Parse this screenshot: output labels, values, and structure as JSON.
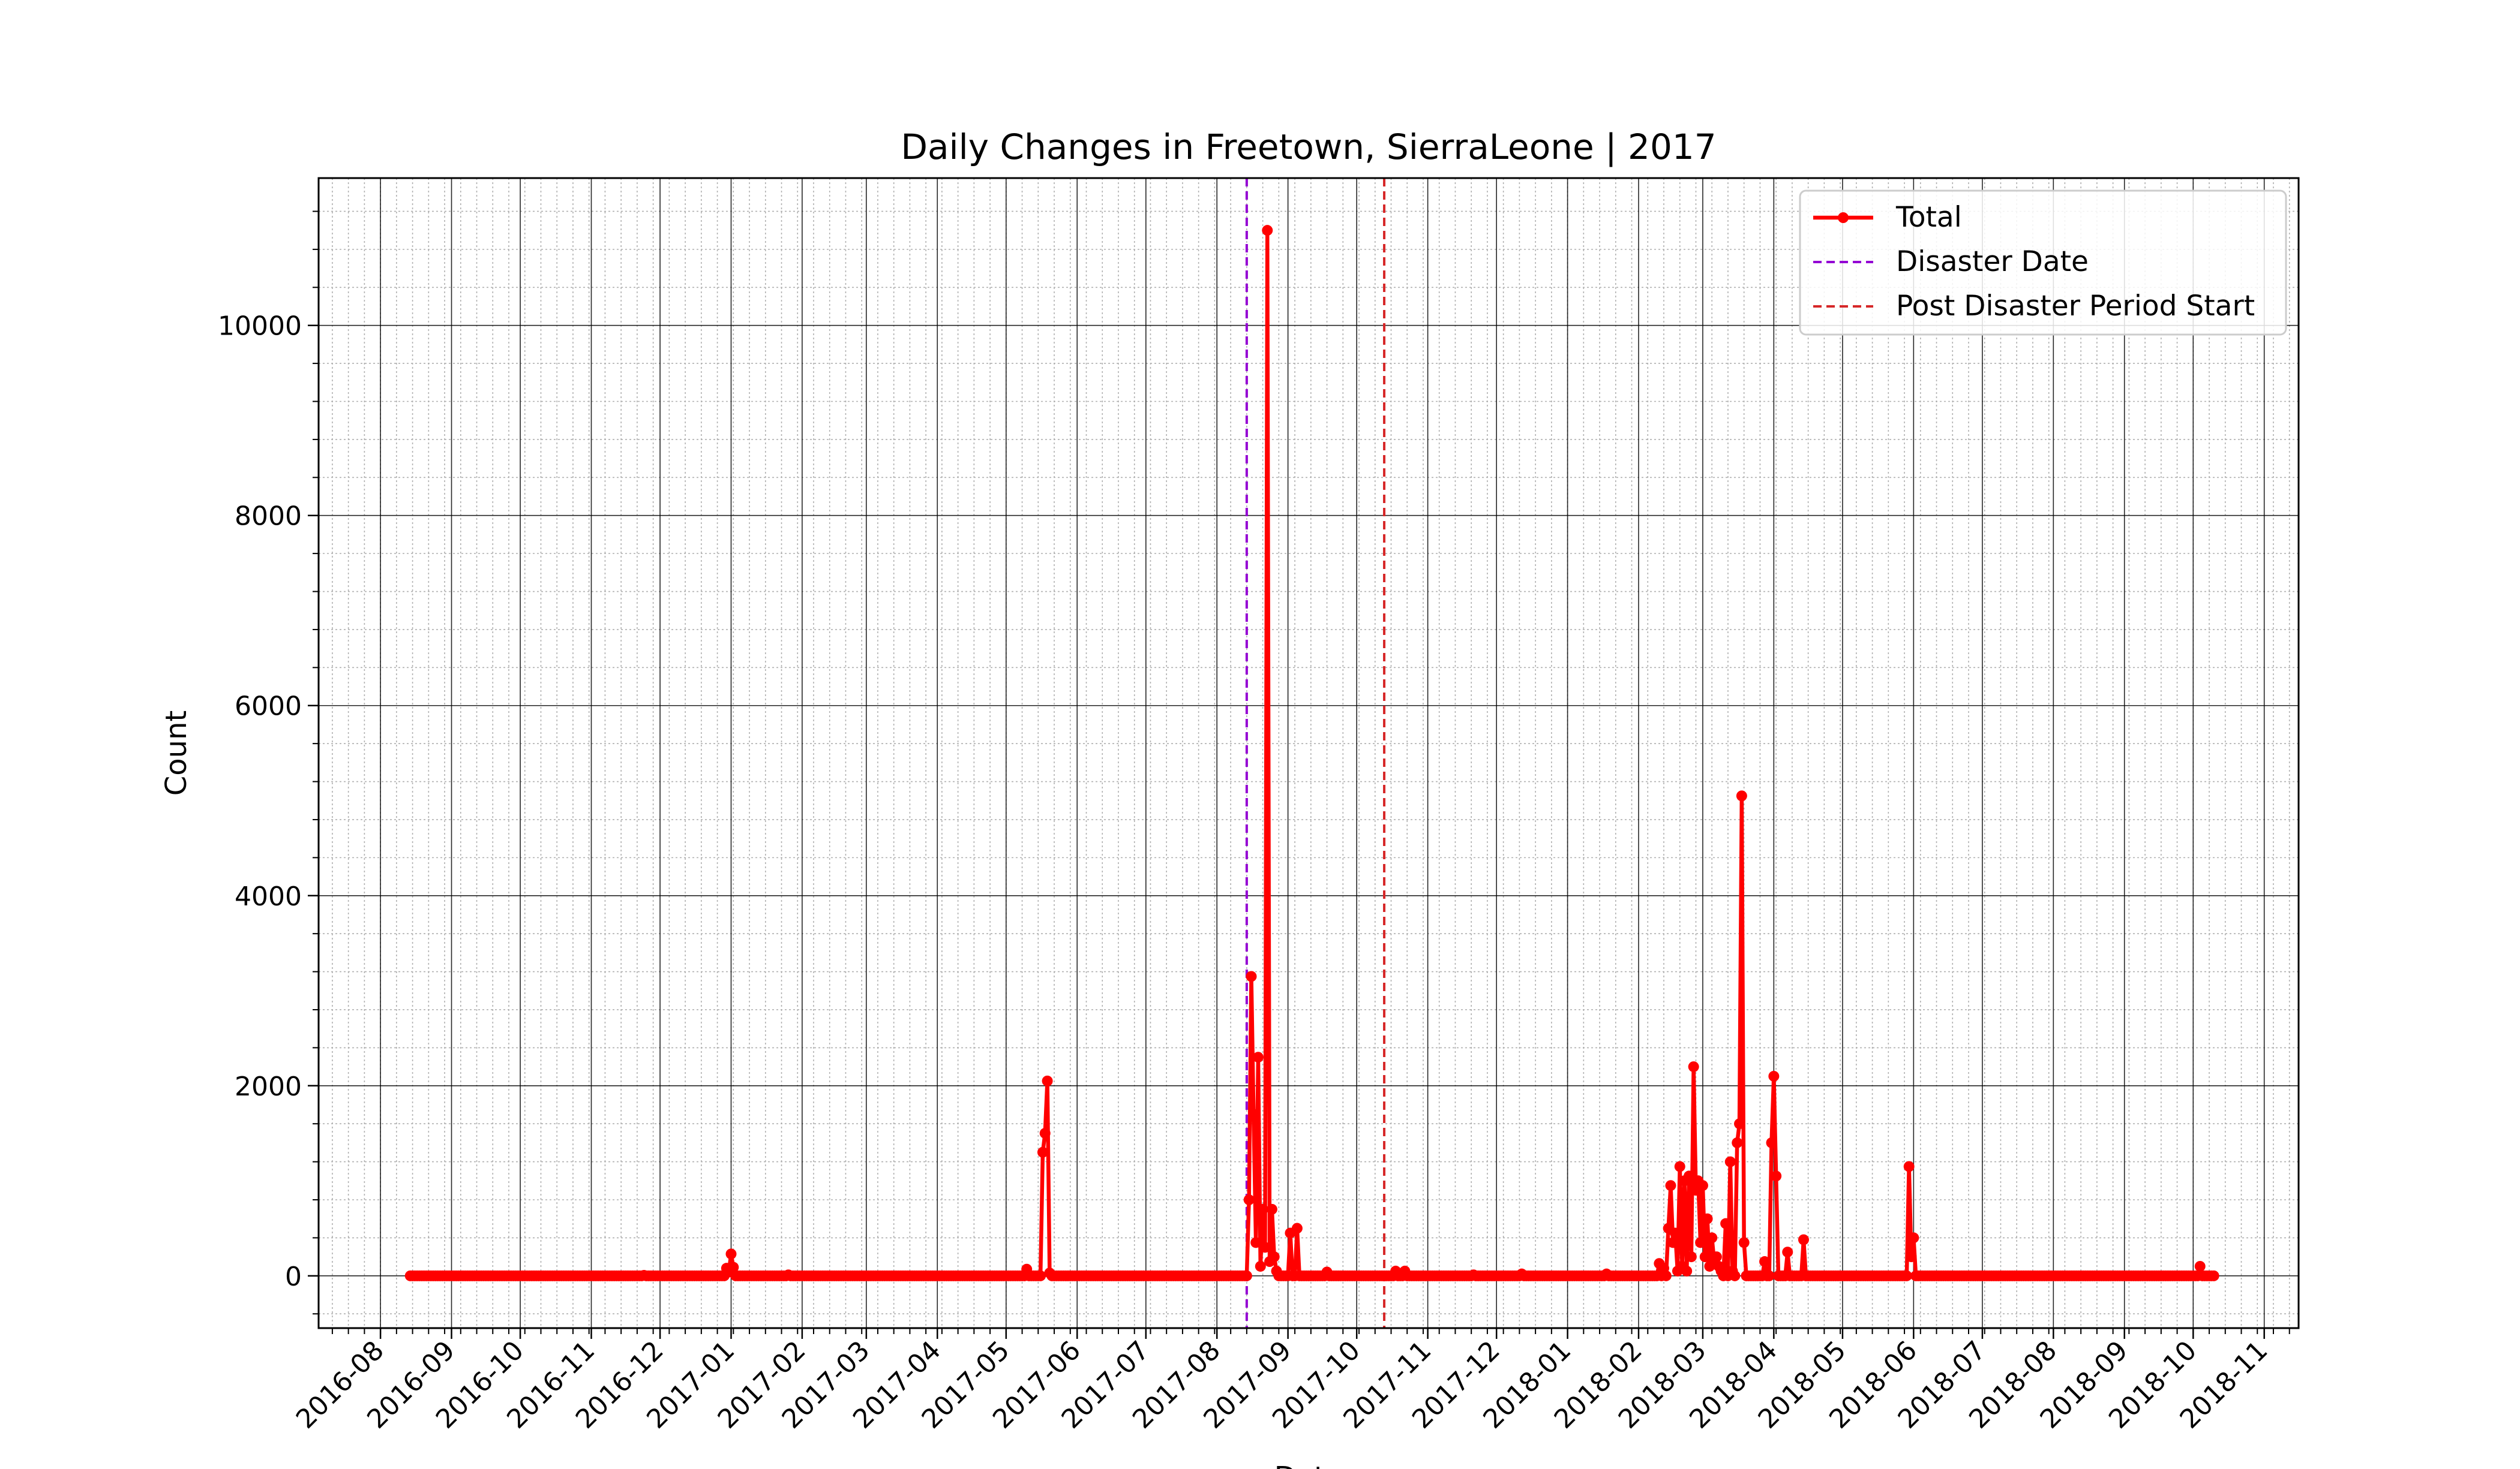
{
  "chart_data": {
    "type": "line",
    "title": "Daily Changes in Freetown, SierraLeone | 2017",
    "xlabel": "Date",
    "ylabel": "Count",
    "x_axis_type": "date",
    "xlim": [
      "2016-07-05",
      "2018-11-16"
    ],
    "ylim": [
      -550,
      11550
    ],
    "x_ticks": [
      "2016-08",
      "2016-09",
      "2016-10",
      "2016-11",
      "2016-12",
      "2017-01",
      "2017-02",
      "2017-03",
      "2017-04",
      "2017-05",
      "2017-06",
      "2017-07",
      "2017-08",
      "2017-09",
      "2017-10",
      "2017-11",
      "2017-12",
      "2018-01",
      "2018-02",
      "2018-03",
      "2018-04",
      "2018-05",
      "2018-06",
      "2018-07",
      "2018-08",
      "2018-09",
      "2018-10",
      "2018-11"
    ],
    "y_ticks": [
      0,
      2000,
      4000,
      6000,
      8000,
      10000
    ],
    "grid": {
      "major": true,
      "minor": true
    },
    "legend_position": "top-right",
    "legend": [
      "Total",
      "Disaster Date",
      "Post Disaster Period Start"
    ],
    "series": [
      {
        "name": "Total",
        "color": "#ff0000",
        "marker": "circle",
        "baseline_range": [
          "2016-08-14",
          "2018-10-10"
        ],
        "points": [
          {
            "x": "2016-11-24",
            "y": 5
          },
          {
            "x": "2016-12-30",
            "y": 80
          },
          {
            "x": "2016-12-31",
            "y": 40
          },
          {
            "x": "2017-01-01",
            "y": 230
          },
          {
            "x": "2017-01-02",
            "y": 90
          },
          {
            "x": "2017-01-26",
            "y": 10
          },
          {
            "x": "2017-05-10",
            "y": 70
          },
          {
            "x": "2017-05-17",
            "y": 1300
          },
          {
            "x": "2017-05-18",
            "y": 1500
          },
          {
            "x": "2017-05-19",
            "y": 2050
          },
          {
            "x": "2017-05-20",
            "y": 30
          },
          {
            "x": "2017-08-15",
            "y": 800
          },
          {
            "x": "2017-08-16",
            "y": 3150
          },
          {
            "x": "2017-08-17",
            "y": 1700
          },
          {
            "x": "2017-08-18",
            "y": 350
          },
          {
            "x": "2017-08-19",
            "y": 2300
          },
          {
            "x": "2017-08-20",
            "y": 100
          },
          {
            "x": "2017-08-21",
            "y": 700
          },
          {
            "x": "2017-08-22",
            "y": 300
          },
          {
            "x": "2017-08-23",
            "y": 11000
          },
          {
            "x": "2017-08-24",
            "y": 150
          },
          {
            "x": "2017-08-25",
            "y": 700
          },
          {
            "x": "2017-08-26",
            "y": 200
          },
          {
            "x": "2017-08-27",
            "y": 50
          },
          {
            "x": "2017-09-02",
            "y": 450
          },
          {
            "x": "2017-09-03",
            "y": 0
          },
          {
            "x": "2017-09-05",
            "y": 500
          },
          {
            "x": "2017-09-06",
            "y": 0
          },
          {
            "x": "2017-09-18",
            "y": 40
          },
          {
            "x": "2017-10-18",
            "y": 50
          },
          {
            "x": "2017-10-22",
            "y": 50
          },
          {
            "x": "2017-11-21",
            "y": 10
          },
          {
            "x": "2017-12-12",
            "y": 20
          },
          {
            "x": "2018-01-18",
            "y": 20
          },
          {
            "x": "2018-02-10",
            "y": 130
          },
          {
            "x": "2018-02-12",
            "y": 80
          },
          {
            "x": "2018-02-14",
            "y": 500
          },
          {
            "x": "2018-02-15",
            "y": 950
          },
          {
            "x": "2018-02-16",
            "y": 350
          },
          {
            "x": "2018-02-17",
            "y": 450
          },
          {
            "x": "2018-02-18",
            "y": 50
          },
          {
            "x": "2018-02-19",
            "y": 1150
          },
          {
            "x": "2018-02-20",
            "y": 100
          },
          {
            "x": "2018-02-21",
            "y": 1000
          },
          {
            "x": "2018-02-22",
            "y": 50
          },
          {
            "x": "2018-02-23",
            "y": 1050
          },
          {
            "x": "2018-02-24",
            "y": 200
          },
          {
            "x": "2018-02-25",
            "y": 2200
          },
          {
            "x": "2018-02-26",
            "y": 900
          },
          {
            "x": "2018-02-27",
            "y": 1000
          },
          {
            "x": "2018-02-28",
            "y": 350
          },
          {
            "x": "2018-03-01",
            "y": 950
          },
          {
            "x": "2018-03-02",
            "y": 200
          },
          {
            "x": "2018-03-03",
            "y": 600
          },
          {
            "x": "2018-03-04",
            "y": 100
          },
          {
            "x": "2018-03-05",
            "y": 400
          },
          {
            "x": "2018-03-06",
            "y": 150
          },
          {
            "x": "2018-03-07",
            "y": 200
          },
          {
            "x": "2018-03-08",
            "y": 100
          },
          {
            "x": "2018-03-09",
            "y": 50
          },
          {
            "x": "2018-03-11",
            "y": 550
          },
          {
            "x": "2018-03-13",
            "y": 1200
          },
          {
            "x": "2018-03-14",
            "y": 50
          },
          {
            "x": "2018-03-16",
            "y": 1400
          },
          {
            "x": "2018-03-17",
            "y": 1600
          },
          {
            "x": "2018-03-18",
            "y": 5050
          },
          {
            "x": "2018-03-19",
            "y": 350
          },
          {
            "x": "2018-03-20",
            "y": 0
          },
          {
            "x": "2018-03-28",
            "y": 150
          },
          {
            "x": "2018-03-31",
            "y": 1400
          },
          {
            "x": "2018-04-01",
            "y": 2100
          },
          {
            "x": "2018-04-02",
            "y": 1050
          },
          {
            "x": "2018-04-03",
            "y": 0
          },
          {
            "x": "2018-04-07",
            "y": 250
          },
          {
            "x": "2018-04-08",
            "y": 0
          },
          {
            "x": "2018-04-14",
            "y": 380
          },
          {
            "x": "2018-04-15",
            "y": 0
          },
          {
            "x": "2018-05-30",
            "y": 1150
          },
          {
            "x": "2018-05-31",
            "y": 200
          },
          {
            "x": "2018-06-01",
            "y": 400
          },
          {
            "x": "2018-06-02",
            "y": 0
          },
          {
            "x": "2018-10-04",
            "y": 100
          }
        ]
      }
    ],
    "vlines": [
      {
        "name": "Disaster Date",
        "x": "2017-08-14",
        "color": "#9400d3",
        "style": "dashed"
      },
      {
        "name": "Post Disaster Period Start",
        "x": "2017-10-13",
        "color": "#d62728",
        "style": "dashed"
      }
    ]
  }
}
